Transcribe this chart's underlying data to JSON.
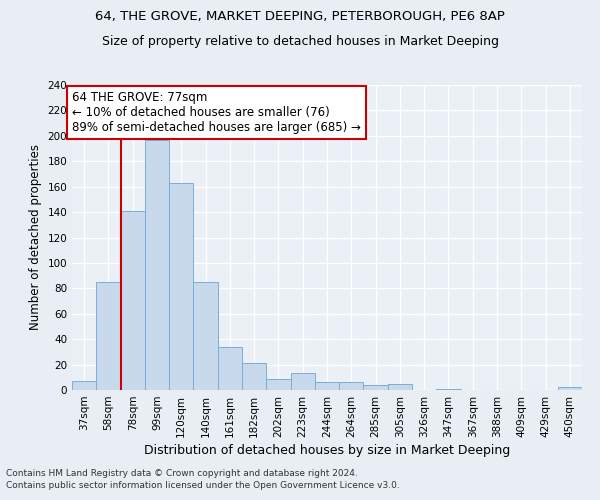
{
  "title1": "64, THE GROVE, MARKET DEEPING, PETERBOROUGH, PE6 8AP",
  "title2": "Size of property relative to detached houses in Market Deeping",
  "xlabel": "Distribution of detached houses by size in Market Deeping",
  "ylabel": "Number of detached properties",
  "footnote1": "Contains HM Land Registry data © Crown copyright and database right 2024.",
  "footnote2": "Contains public sector information licensed under the Open Government Licence v3.0.",
  "categories": [
    "37sqm",
    "58sqm",
    "78sqm",
    "99sqm",
    "120sqm",
    "140sqm",
    "161sqm",
    "182sqm",
    "202sqm",
    "223sqm",
    "244sqm",
    "264sqm",
    "285sqm",
    "305sqm",
    "326sqm",
    "347sqm",
    "367sqm",
    "388sqm",
    "409sqm",
    "429sqm",
    "450sqm"
  ],
  "values": [
    7,
    85,
    141,
    197,
    163,
    85,
    34,
    21,
    9,
    13,
    6,
    6,
    4,
    5,
    0,
    1,
    0,
    0,
    0,
    0,
    2
  ],
  "bar_color": "#c9d9ec",
  "bar_edge_color": "#7aaed6",
  "vline_x_index": 2,
  "vline_color": "#cc0000",
  "annotation_text": "64 THE GROVE: 77sqm\n← 10% of detached houses are smaller (76)\n89% of semi-detached houses are larger (685) →",
  "annotation_box_color": "white",
  "annotation_box_edge_color": "#cc0000",
  "annotation_fontsize": 8.5,
  "ylim": [
    0,
    240
  ],
  "yticks": [
    0,
    20,
    40,
    60,
    80,
    100,
    120,
    140,
    160,
    180,
    200,
    220,
    240
  ],
  "bg_color": "#e8eef4",
  "plot_bg_color": "#eaf0f6",
  "grid_color": "white",
  "title1_fontsize": 9.5,
  "title2_fontsize": 9,
  "xlabel_fontsize": 9,
  "ylabel_fontsize": 8.5,
  "tick_fontsize": 7.5,
  "footnote_fontsize": 6.5
}
